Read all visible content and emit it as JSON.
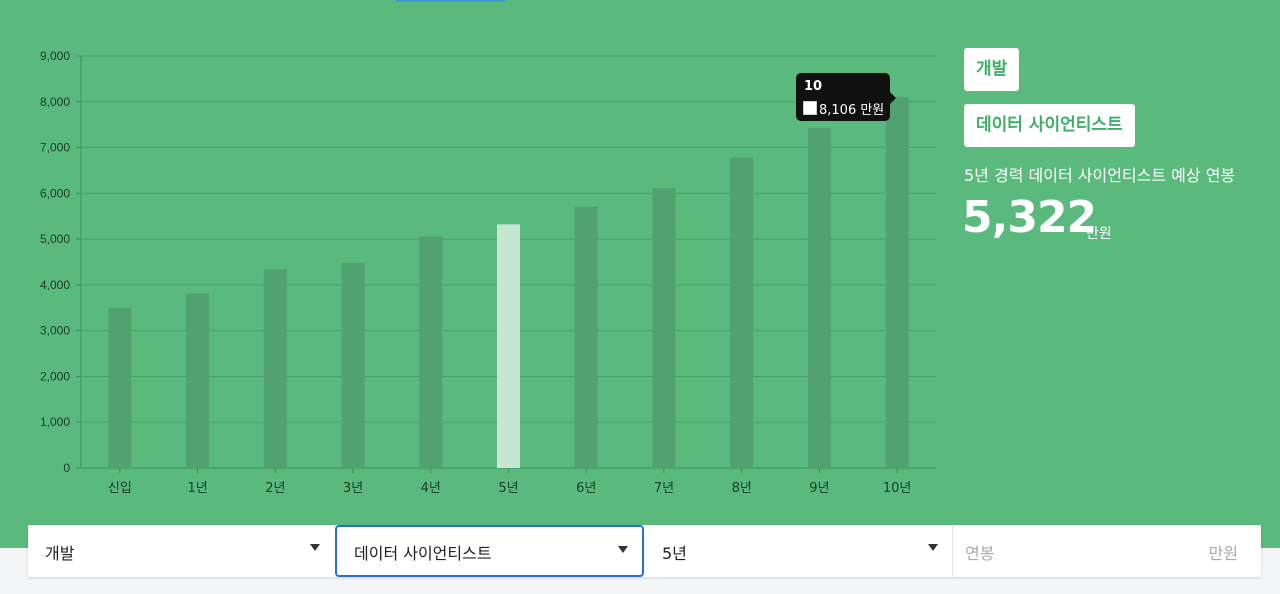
{
  "chart_data": {
    "type": "bar",
    "categories": [
      "신입",
      "1년",
      "2년",
      "3년",
      "4년",
      "5년",
      "6년",
      "7년",
      "8년",
      "9년",
      "10년"
    ],
    "values": [
      3500,
      3810,
      4340,
      4480,
      5060,
      5322,
      5710,
      6110,
      6780,
      7430,
      8106
    ],
    "highlight_index": 5,
    "ylim": [
      0,
      9000
    ],
    "yticks": [
      "0",
      "1,000",
      "2,000",
      "3,000",
      "4,000",
      "5,000",
      "6,000",
      "7,000",
      "8,000",
      "9,000"
    ],
    "grid": true,
    "colors": {
      "bar": "#52a170",
      "highlight": "#c6e6d1",
      "grid": "#4a9f69",
      "background": "#5aba7e"
    }
  },
  "tooltip": {
    "title": "10",
    "value": "8,106 만원"
  },
  "side": {
    "tag_category": "개발",
    "tag_job": "데이터 사이언티스트",
    "description": "5년 경력 데이터 사이언티스트 예상 연봉",
    "salary": "5,322",
    "unit": "만원"
  },
  "controls": {
    "category": "개발",
    "job": "데이터 사이언티스트",
    "experience": "5년",
    "salary_placeholder": "연봉",
    "salary_unit": "만원"
  }
}
